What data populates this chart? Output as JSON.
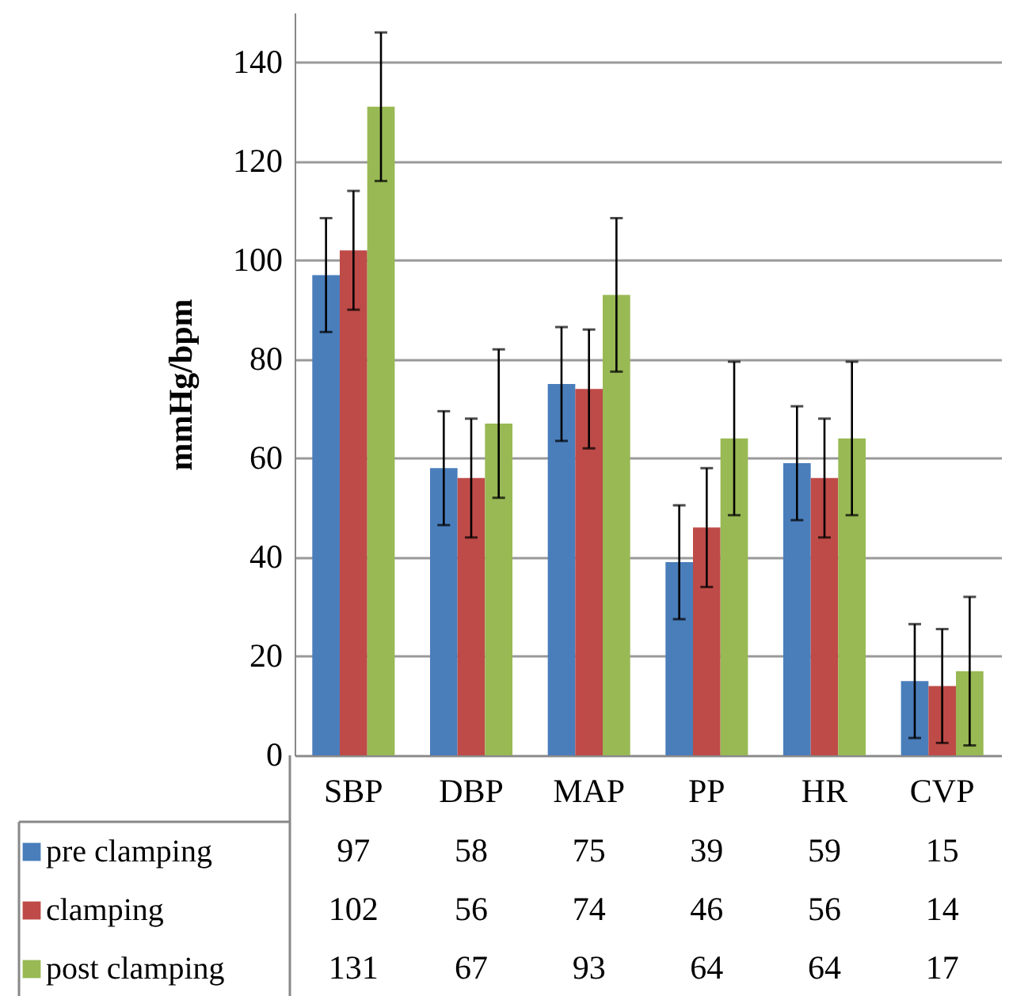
{
  "chart_data": {
    "type": "bar",
    "ylabel": "mmHg/bpm",
    "categories": [
      "SBP",
      "DBP",
      "MAP",
      "PP",
      "HR",
      "CVP"
    ],
    "series": [
      {
        "name": "pre clamping",
        "color": "#4a7ebb",
        "values": [
          97,
          58,
          75,
          39,
          59,
          15
        ],
        "errors": [
          11.5,
          11.5,
          11.5,
          11.5,
          11.5,
          11.5
        ]
      },
      {
        "name": "clamping",
        "color": "#be4b48",
        "values": [
          102,
          56,
          74,
          46,
          56,
          14
        ],
        "errors": [
          12,
          12,
          12,
          12,
          12,
          11.5
        ]
      },
      {
        "name": "post clamping",
        "color": "#98b954",
        "values": [
          131,
          67,
          93,
          64,
          64,
          17
        ],
        "errors": [
          15,
          15,
          15.5,
          15.5,
          15.5,
          15
        ]
      }
    ],
    "ylim": [
      0,
      150
    ],
    "yticks": [
      0,
      20,
      40,
      60,
      80,
      100,
      120,
      140
    ],
    "grid": "y",
    "legend": "bottom",
    "data_labels": true
  }
}
